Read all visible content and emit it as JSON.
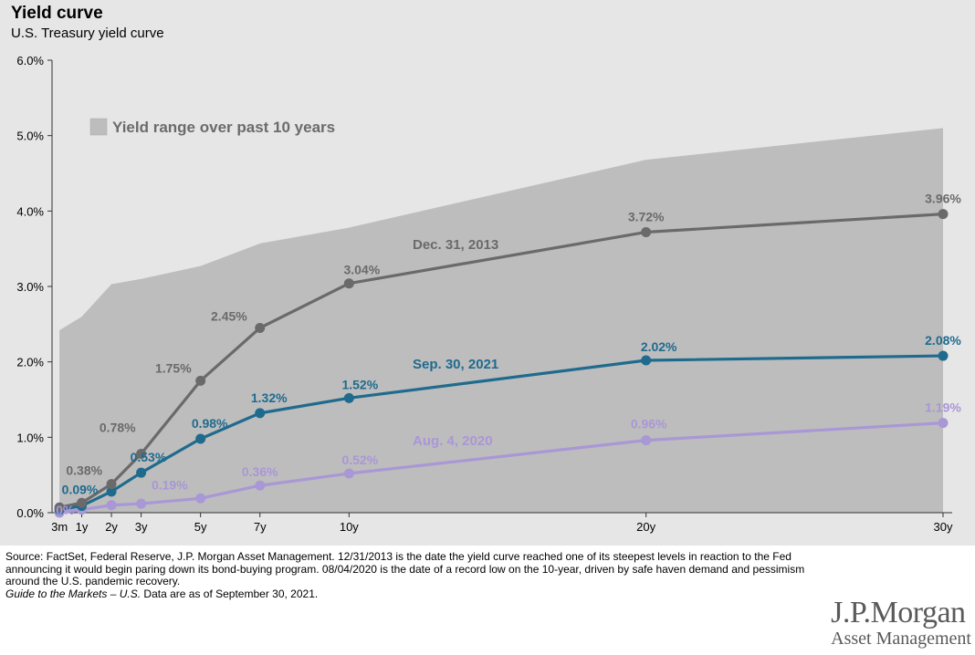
{
  "header": {
    "title": "Yield curve",
    "subtitle": "U.S. Treasury yield curve"
  },
  "chart_data": {
    "type": "line",
    "title": "Yield curve",
    "subtitle": "U.S. Treasury yield curve",
    "xlabel": "",
    "ylabel": "",
    "x": [
      0.25,
      1,
      2,
      3,
      5,
      7,
      10,
      20,
      30
    ],
    "x_tick_labels": [
      "3m",
      "1y",
      "2y",
      "3y",
      "5y",
      "7y",
      "10y",
      "20y",
      "30y"
    ],
    "ylim": [
      0,
      6
    ],
    "y_ticks": [
      0,
      1,
      2,
      3,
      4,
      5,
      6
    ],
    "y_tick_labels": [
      "0.0%",
      "1.0%",
      "2.0%",
      "3.0%",
      "4.0%",
      "5.0%",
      "6.0%"
    ],
    "grid": false,
    "range_area": {
      "name": "Yield range over past 10 years",
      "color": "#bdbdbd",
      "lower": [
        0,
        0,
        0,
        0,
        0,
        0,
        0,
        0,
        0
      ],
      "upper": [
        2.42,
        2.6,
        3.03,
        3.1,
        3.27,
        3.57,
        3.78,
        4.68,
        5.1
      ]
    },
    "series": [
      {
        "name": "Dec. 31, 2013",
        "color": "#6a6a6a",
        "values": [
          0.07,
          0.13,
          0.38,
          0.78,
          1.75,
          2.45,
          3.04,
          3.72,
          3.96
        ],
        "labels": [
          "",
          "",
          "0.38%",
          "0.78%",
          "1.75%",
          "2.45%",
          "3.04%",
          "3.72%",
          "3.96%"
        ]
      },
      {
        "name": "Sep. 30, 2021",
        "color": "#1f6b8e",
        "values": [
          0.04,
          0.09,
          0.28,
          0.53,
          0.98,
          1.32,
          1.52,
          2.02,
          2.08
        ],
        "labels": [
          "",
          "0.09%",
          "",
          "0.53%",
          "0.98%",
          "1.32%",
          "1.52%",
          "2.02%",
          "2.08%"
        ]
      },
      {
        "name": "Aug. 4, 2020",
        "color": "#a997d6",
        "values": [
          0.0,
          0.04,
          0.1,
          0.12,
          0.19,
          0.36,
          0.52,
          0.96,
          1.19
        ],
        "labels": [
          "0%",
          "",
          "",
          "",
          "0.19%",
          "0.36%",
          "0.52%",
          "0.96%",
          "1.19%"
        ]
      }
    ],
    "legend": {
      "entries": [
        "Yield range over past 10 years"
      ],
      "placement": "top-left"
    }
  },
  "footer": {
    "source": "Source: FactSet, Federal Reserve, J.P. Morgan Asset Management. 12/31/2013 is the date the yield curve reached one of its steepest levels in reaction to the Fed announcing it would begin paring down its bond-buying program. 08/04/2020 is the date of a record low on the 10-year, driven by safe haven demand and pessimism around the U.S. pandemic recovery.",
    "guide_title": "Guide to the Markets – U.S.",
    "guide_date": " Data are as of September 30, 2021."
  },
  "logo": {
    "name": "J.P.Morgan",
    "sub": "Asset Management"
  }
}
